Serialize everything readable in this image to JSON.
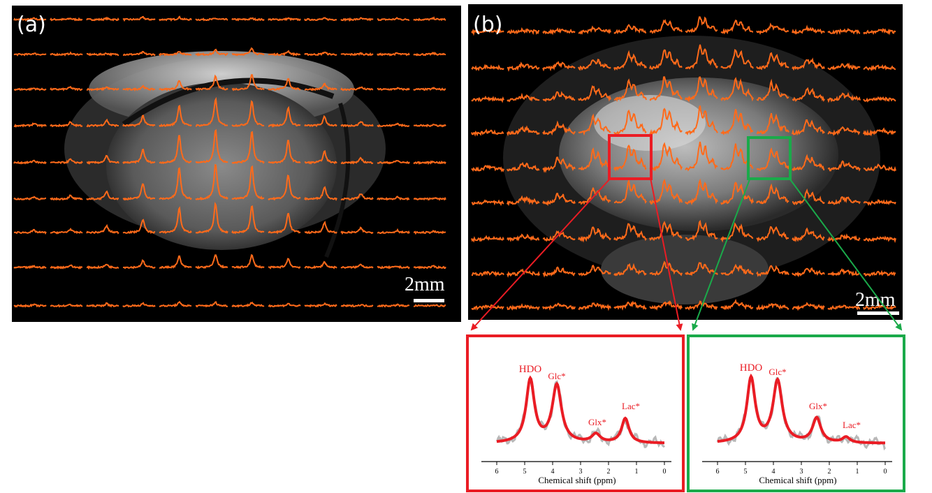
{
  "panels": {
    "a": {
      "label": "(a)",
      "scale_bar": "2mm"
    },
    "b": {
      "label": "(b)",
      "scale_bar": "2mm"
    }
  },
  "colors": {
    "spectra": "#ff6a1a",
    "red": "#ea1c24",
    "green": "#1aaa4a",
    "fit_gray": "#b8b8b8"
  },
  "insets": [
    {
      "id": "red",
      "peak_labels": [
        "HDO",
        "Glc*",
        "Glx*",
        "Lac*"
      ],
      "x_ticks": [
        "6",
        "5",
        "4",
        "3",
        "2",
        "1",
        "0"
      ],
      "xlabel": "Chemical shift (ppm)"
    },
    {
      "id": "green",
      "peak_labels": [
        "HDO",
        "Glc*",
        "Glx*",
        "Lac*"
      ],
      "x_ticks": [
        "6",
        "5",
        "4",
        "3",
        "2",
        "1",
        "0"
      ],
      "xlabel": "Chemical shift (ppm)"
    }
  ]
}
